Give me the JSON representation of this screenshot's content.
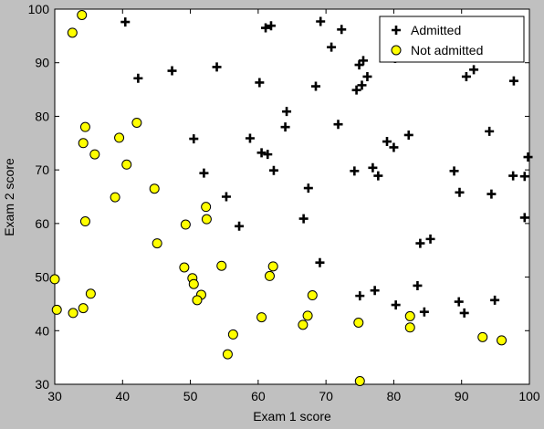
{
  "chart_data": {
    "type": "scatter",
    "title": "",
    "xlabel": "Exam 1 score",
    "ylabel": "Exam 2 score",
    "xlim": [
      30,
      100
    ],
    "ylim": [
      30,
      100
    ],
    "xticks": [
      "30",
      "40",
      "50",
      "60",
      "70",
      "80",
      "90",
      "100"
    ],
    "yticks": [
      "30",
      "40",
      "50",
      "60",
      "70",
      "80",
      "90",
      "100"
    ],
    "grid": false,
    "legend_position": "top-right",
    "series": [
      {
        "name": "Admitted",
        "marker": "plus",
        "color": "#000000",
        "points": [
          [
            40.4,
            97.6
          ],
          [
            61.1,
            96.5
          ],
          [
            61.9,
            96.9
          ],
          [
            69.2,
            97.7
          ],
          [
            72.3,
            96.2
          ],
          [
            70.8,
            92.9
          ],
          [
            80.2,
            90.8
          ],
          [
            75.5,
            90.4
          ],
          [
            74.9,
            89.6
          ],
          [
            76.1,
            87.4
          ],
          [
            91.8,
            88.7
          ],
          [
            90.7,
            87.4
          ],
          [
            97.7,
            86.6
          ],
          [
            47.3,
            88.5
          ],
          [
            42.3,
            87.1
          ],
          [
            53.9,
            89.2
          ],
          [
            60.2,
            86.3
          ],
          [
            68.5,
            85.6
          ],
          [
            74.5,
            84.9
          ],
          [
            75.3,
            85.8
          ],
          [
            64.2,
            80.9
          ],
          [
            64.0,
            78.0
          ],
          [
            71.8,
            78.5
          ],
          [
            94.1,
            77.2
          ],
          [
            82.2,
            76.5
          ],
          [
            50.5,
            75.8
          ],
          [
            58.8,
            75.9
          ],
          [
            60.5,
            73.2
          ],
          [
            61.4,
            72.9
          ],
          [
            79.0,
            75.3
          ],
          [
            80.0,
            74.2
          ],
          [
            99.8,
            72.4
          ],
          [
            62.3,
            69.9
          ],
          [
            52.0,
            69.4
          ],
          [
            74.2,
            69.8
          ],
          [
            76.9,
            70.4
          ],
          [
            77.7,
            68.9
          ],
          [
            88.9,
            69.8
          ],
          [
            97.6,
            68.9
          ],
          [
            99.3,
            68.8
          ],
          [
            67.4,
            66.6
          ],
          [
            89.7,
            65.8
          ],
          [
            94.4,
            65.5
          ],
          [
            55.3,
            65.0
          ],
          [
            66.7,
            60.9
          ],
          [
            57.2,
            59.5
          ],
          [
            99.3,
            61.1
          ],
          [
            69.1,
            52.7
          ],
          [
            85.4,
            57.1
          ],
          [
            83.9,
            56.3
          ],
          [
            75.0,
            46.5
          ],
          [
            77.2,
            47.5
          ],
          [
            83.5,
            48.4
          ],
          [
            80.3,
            44.8
          ],
          [
            84.5,
            43.5
          ],
          [
            89.6,
            45.4
          ],
          [
            90.4,
            43.3
          ],
          [
            94.9,
            45.7
          ]
        ]
      },
      {
        "name": "Not admitted",
        "marker": "circle",
        "color": "#ffff00",
        "points": [
          [
            34.0,
            98.9
          ],
          [
            32.6,
            95.6
          ],
          [
            34.5,
            78.0
          ],
          [
            34.2,
            75.0
          ],
          [
            42.1,
            78.8
          ],
          [
            39.5,
            76.0
          ],
          [
            35.9,
            72.9
          ],
          [
            40.6,
            71.0
          ],
          [
            44.7,
            66.5
          ],
          [
            38.9,
            64.9
          ],
          [
            34.5,
            60.4
          ],
          [
            52.3,
            63.1
          ],
          [
            52.4,
            60.8
          ],
          [
            49.3,
            59.8
          ],
          [
            45.1,
            56.3
          ],
          [
            30.0,
            49.6
          ],
          [
            49.1,
            51.8
          ],
          [
            54.6,
            52.1
          ],
          [
            62.2,
            52.0
          ],
          [
            61.7,
            50.2
          ],
          [
            50.3,
            49.8
          ],
          [
            50.5,
            48.7
          ],
          [
            35.3,
            46.9
          ],
          [
            51.6,
            46.7
          ],
          [
            51.0,
            45.7
          ],
          [
            68.0,
            46.6
          ],
          [
            34.2,
            44.2
          ],
          [
            30.3,
            43.9
          ],
          [
            32.7,
            43.3
          ],
          [
            60.5,
            42.5
          ],
          [
            67.3,
            42.8
          ],
          [
            66.6,
            41.1
          ],
          [
            74.8,
            41.5
          ],
          [
            82.4,
            42.7
          ],
          [
            82.4,
            40.6
          ],
          [
            56.3,
            39.3
          ],
          [
            93.1,
            38.8
          ],
          [
            95.9,
            38.2
          ],
          [
            55.5,
            35.6
          ],
          [
            75.0,
            30.6
          ]
        ]
      }
    ]
  }
}
